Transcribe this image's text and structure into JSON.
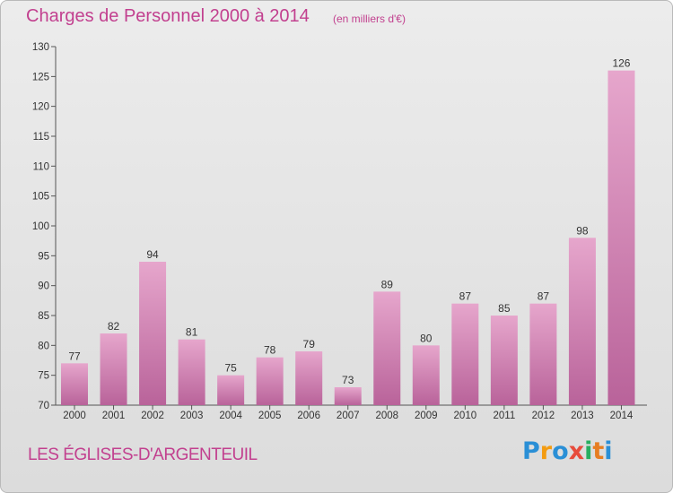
{
  "title": "Charges de Personnel 2000 à 2014",
  "subtitle": "(en milliers d'€)",
  "town": "LES ÉGLISES-D'ARGENTEUIL",
  "logo": {
    "letters": [
      "P",
      "r",
      "o",
      "x",
      "i",
      "t",
      "i"
    ],
    "colors": [
      "#2a8fd6",
      "#f39c12",
      "#2a8fd6",
      "#e74c3c",
      "#27ae60",
      "#e67e22",
      "#2a8fd6"
    ]
  },
  "colors": {
    "bar": "#d982b5",
    "bar_dark": "#b9639a",
    "title": "#c2408f",
    "axis": "#555555",
    "grid": "#cccccc"
  },
  "chart_data": {
    "type": "bar",
    "categories": [
      "2000",
      "2001",
      "2002",
      "2003",
      "2004",
      "2005",
      "2006",
      "2007",
      "2008",
      "2009",
      "2010",
      "2011",
      "2012",
      "2013",
      "2014"
    ],
    "values": [
      77,
      82,
      94,
      81,
      75,
      78,
      79,
      73,
      89,
      80,
      87,
      85,
      87,
      98,
      126
    ],
    "ylim": [
      70,
      130
    ],
    "yticks": [
      70,
      75,
      80,
      85,
      90,
      95,
      100,
      105,
      110,
      115,
      120,
      125,
      130
    ],
    "grid": false
  }
}
